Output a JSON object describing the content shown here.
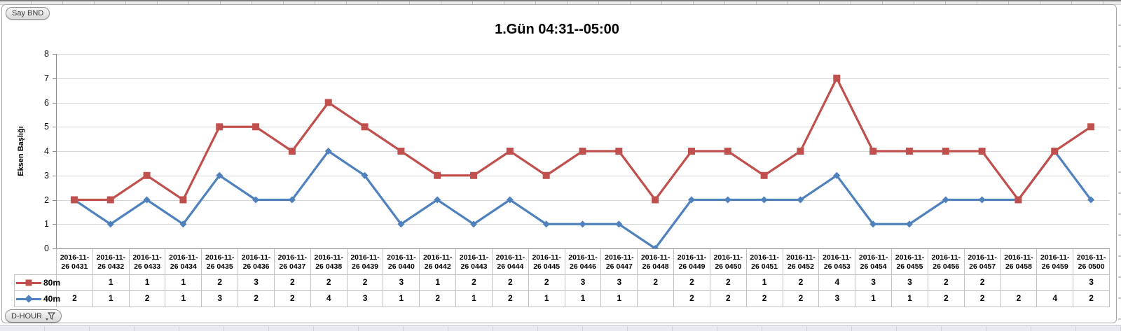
{
  "buttons": {
    "say_bnd": "Say BND",
    "d_hour": "D-HOUR"
  },
  "chart_data": {
    "type": "line",
    "subtype": "stacked-line-with-markers",
    "title": "1.Gün 04:31--05:00",
    "ylabel": "Eksen Başlığı",
    "xlabel": "",
    "ylim": [
      0,
      8
    ],
    "ytick_step": 1,
    "grid": true,
    "legend_position": "data-table-left",
    "axis_color": "#8c8c8c",
    "gridline_color": "#d6d6d6",
    "table_border_color": "#c2c2c2",
    "categories": [
      "2016-11-26 0431",
      "2016-11-26 0432",
      "2016-11-26 0433",
      "2016-11-26 0434",
      "2016-11-26 0435",
      "2016-11-26 0436",
      "2016-11-26 0437",
      "2016-11-26 0438",
      "2016-11-26 0439",
      "2016-11-26 0440",
      "2016-11-26 0442",
      "2016-11-26 0443",
      "2016-11-26 0444",
      "2016-11-26 0445",
      "2016-11-26 0446",
      "2016-11-26 0447",
      "2016-11-26 0448",
      "2016-11-26 0449",
      "2016-11-26 0450",
      "2016-11-26 0451",
      "2016-11-26 0452",
      "2016-11-26 0453",
      "2016-11-26 0454",
      "2016-11-26 0455",
      "2016-11-26 0456",
      "2016-11-26 0457",
      "2016-11-26 0458",
      "2016-11-26 0459",
      "2016-11-26 0500"
    ],
    "series": [
      {
        "name": "80m",
        "color": "#C0504D",
        "marker": "square",
        "values": [
          "",
          1,
          1,
          1,
          2,
          3,
          2,
          2,
          2,
          3,
          1,
          2,
          2,
          2,
          3,
          3,
          2,
          2,
          2,
          1,
          2,
          4,
          3,
          3,
          2,
          2,
          "",
          "",
          3
        ]
      },
      {
        "name": "40m",
        "color": "#4F81BD",
        "marker": "diamond",
        "values": [
          2,
          1,
          2,
          1,
          3,
          2,
          2,
          4,
          3,
          1,
          2,
          1,
          2,
          1,
          1,
          1,
          "",
          2,
          2,
          2,
          2,
          3,
          1,
          1,
          2,
          2,
          2,
          4,
          2
        ]
      }
    ],
    "plotted": {
      "40m": [
        2,
        1,
        2,
        1,
        3,
        2,
        2,
        4,
        3,
        1,
        2,
        1,
        2,
        1,
        1,
        1,
        0,
        2,
        2,
        2,
        2,
        3,
        1,
        1,
        2,
        2,
        2,
        4,
        2
      ],
      "80m_stacked_total": [
        2,
        2,
        3,
        2,
        5,
        5,
        4,
        6,
        5,
        4,
        3,
        3,
        4,
        3,
        4,
        4,
        2,
        4,
        4,
        3,
        4,
        7,
        4,
        4,
        4,
        4,
        2,
        4,
        5
      ]
    }
  }
}
